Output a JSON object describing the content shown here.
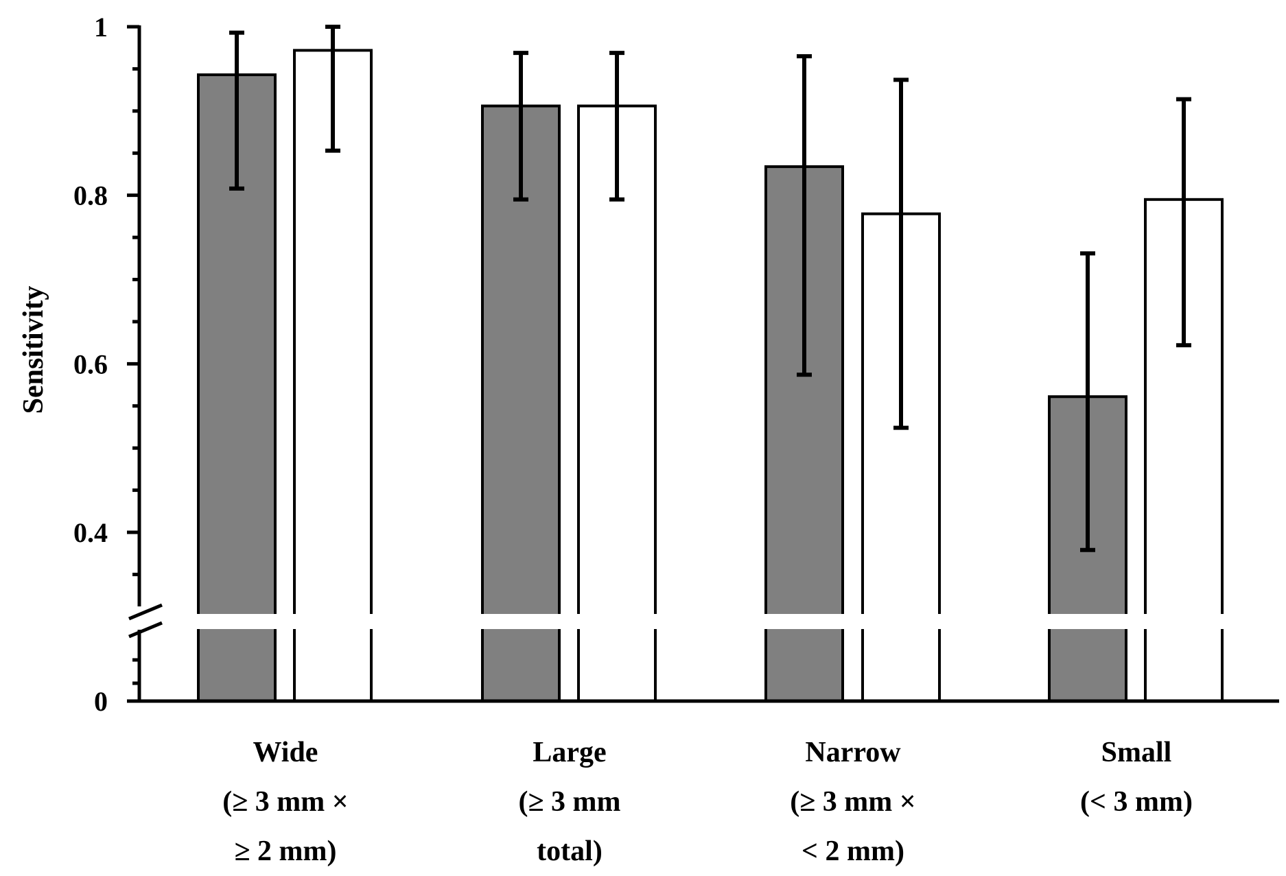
{
  "chart_data": {
    "type": "bar",
    "title": "",
    "xlabel": "",
    "ylabel": "Sensitivity",
    "ylim": [
      0,
      1
    ],
    "axis_break": "between 0 and ~0.3",
    "y_tick_labels": [
      "0",
      "0.4",
      "0.6",
      "0.8",
      "1"
    ],
    "categories": [
      {
        "lines": [
          "Wide",
          "(≥ 3 mm ×",
          "≥ 2 mm)"
        ]
      },
      {
        "lines": [
          "Large",
          "(≥ 3 mm",
          "total)"
        ]
      },
      {
        "lines": [
          "Narrow",
          "(≥ 3 mm ×",
          "< 2 mm)"
        ]
      },
      {
        "lines": [
          "Small",
          "(< 3 mm)"
        ]
      }
    ],
    "series": [
      {
        "name": "gray",
        "color": "#808080",
        "values": [
          0.943,
          0.906,
          0.834,
          0.561
        ],
        "error_low": [
          0.808,
          0.795,
          0.587,
          0.379
        ],
        "error_high": [
          0.993,
          0.969,
          0.965,
          0.731
        ]
      },
      {
        "name": "white",
        "color": "#ffffff",
        "values": [
          0.972,
          0.906,
          0.778,
          0.795
        ],
        "error_low": [
          0.853,
          0.795,
          0.524,
          0.622
        ],
        "error_high": [
          1.0,
          0.969,
          0.937,
          0.914
        ]
      }
    ]
  }
}
